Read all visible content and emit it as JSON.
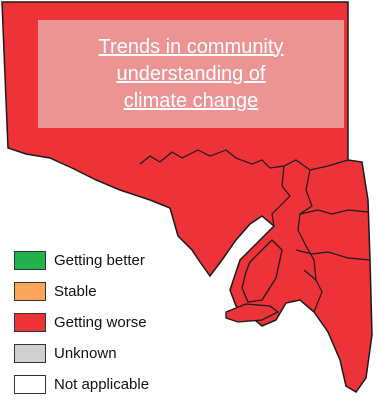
{
  "title": {
    "lines": [
      "Trends in community",
      "understanding of",
      "climate change"
    ]
  },
  "legend": [
    {
      "label": "Getting better",
      "color": "#22b14c"
    },
    {
      "label": "Stable",
      "color": "#f9a65a"
    },
    {
      "label": "Getting worse",
      "color": "#ee3338"
    },
    {
      "label": "Unknown",
      "color": "#d0d0d0"
    },
    {
      "label": "Not applicable",
      "color": "#ffffff"
    }
  ],
  "map": {
    "region_fill": "#ee3338",
    "border_color": "#1a1a1a",
    "status": "Getting worse"
  }
}
